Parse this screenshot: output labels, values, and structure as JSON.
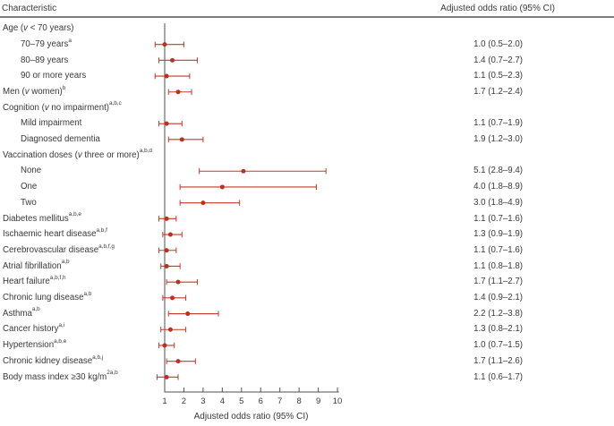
{
  "header": {
    "left": "Characteristic",
    "right": "Adjusted odds ratio (95% CI)"
  },
  "colors": {
    "accent_red": "#c23a28",
    "marker_red": "#b93221",
    "text": "#383838",
    "axis": "#4f4f4f",
    "rule": "#7d7d7d",
    "background": "#ffffff"
  },
  "chart_data": {
    "type": "scatter",
    "variant": "forest-plot",
    "title": "",
    "xlabel": "Adjusted odds ratio (95% CI)",
    "x_ticks": [
      1,
      2,
      3,
      4,
      5,
      6,
      7,
      8,
      9,
      10
    ],
    "x_range": [
      1,
      10
    ],
    "reference_line_x": 1,
    "grid": false,
    "rows": [
      {
        "label": "Age (v < 70 years)",
        "sup": "",
        "indent": false,
        "or": null,
        "lo": null,
        "hi": null,
        "text": ""
      },
      {
        "label": "70–79 years",
        "sup": "a",
        "indent": true,
        "or": 1.0,
        "lo": 0.5,
        "hi": 2.0,
        "text": "1.0 (0.5–2.0)"
      },
      {
        "label": "80–89 years",
        "sup": "",
        "indent": true,
        "or": 1.4,
        "lo": 0.7,
        "hi": 2.7,
        "text": "1.4 (0.7–2.7)"
      },
      {
        "label": "90 or more years",
        "sup": "",
        "indent": true,
        "or": 1.1,
        "lo": 0.5,
        "hi": 2.3,
        "text": "1.1 (0.5–2.3)"
      },
      {
        "label": "Men (v women)",
        "sup": "b",
        "indent": false,
        "or": 1.7,
        "lo": 1.2,
        "hi": 2.4,
        "text": "1.7 (1.2–2.4)"
      },
      {
        "label": "Cognition (v no impairment)",
        "sup": "a,b,c",
        "indent": false,
        "or": null,
        "lo": null,
        "hi": null,
        "text": ""
      },
      {
        "label": "Mild impairment",
        "sup": "",
        "indent": true,
        "or": 1.1,
        "lo": 0.7,
        "hi": 1.9,
        "text": "1.1 (0.7–1.9)"
      },
      {
        "label": "Diagnosed dementia",
        "sup": "",
        "indent": true,
        "or": 1.9,
        "lo": 1.2,
        "hi": 3.0,
        "text": "1.9 (1.2–3.0)"
      },
      {
        "label": "Vaccination doses (v three or more)",
        "sup": "a,b,d",
        "indent": false,
        "or": null,
        "lo": null,
        "hi": null,
        "text": ""
      },
      {
        "label": "None",
        "sup": "",
        "indent": true,
        "or": 5.1,
        "lo": 2.8,
        "hi": 9.4,
        "text": "5.1 (2.8–9.4)"
      },
      {
        "label": "One",
        "sup": "",
        "indent": true,
        "or": 4.0,
        "lo": 1.8,
        "hi": 8.9,
        "text": "4.0 (1.8–8.9)"
      },
      {
        "label": "Two",
        "sup": "",
        "indent": true,
        "or": 3.0,
        "lo": 1.8,
        "hi": 4.9,
        "text": "3.0 (1.8–4.9)"
      },
      {
        "label": "Diabetes mellitus",
        "sup": "a,b,e",
        "indent": false,
        "or": 1.1,
        "lo": 0.7,
        "hi": 1.6,
        "text": "1.1 (0.7–1.6)"
      },
      {
        "label": "Ischaemic heart disease",
        "sup": "a,b,f",
        "indent": false,
        "or": 1.3,
        "lo": 0.9,
        "hi": 1.9,
        "text": "1.3 (0.9–1.9)"
      },
      {
        "label": "Cerebrovascular disease",
        "sup": "a,b,f,g",
        "indent": false,
        "or": 1.1,
        "lo": 0.7,
        "hi": 1.6,
        "text": "1.1 (0.7–1.6)"
      },
      {
        "label": "Atrial fibrillation",
        "sup": "a,b",
        "indent": false,
        "or": 1.1,
        "lo": 0.8,
        "hi": 1.8,
        "text": "1.1 (0.8–1.8)"
      },
      {
        "label": "Heart failure",
        "sup": "a,b,f,h",
        "indent": false,
        "or": 1.7,
        "lo": 1.1,
        "hi": 2.7,
        "text": "1.7 (1.1–2.7)"
      },
      {
        "label": "Chronic lung disease",
        "sup": "a,b",
        "indent": false,
        "or": 1.4,
        "lo": 0.9,
        "hi": 2.1,
        "text": "1.4 (0.9–2.1)"
      },
      {
        "label": "Asthma",
        "sup": "a,b",
        "indent": false,
        "or": 2.2,
        "lo": 1.2,
        "hi": 3.8,
        "text": "2.2 (1.2–3.8)"
      },
      {
        "label": "Cancer history",
        "sup": "a,i",
        "indent": false,
        "or": 1.3,
        "lo": 0.8,
        "hi": 2.1,
        "text": "1.3 (0.8–2.1)"
      },
      {
        "label": "Hypertension",
        "sup": "a,b,e",
        "indent": false,
        "or": 1.0,
        "lo": 0.7,
        "hi": 1.5,
        "text": "1.0 (0.7–1.5)"
      },
      {
        "label": "Chronic kidney disease",
        "sup": "a,b,j",
        "indent": false,
        "or": 1.7,
        "lo": 1.1,
        "hi": 2.6,
        "text": "1.7 (1.1–2.6)"
      },
      {
        "label": "Body mass index ≥30 kg/m",
        "sup": "2a,b",
        "indent": false,
        "or": 1.1,
        "lo": 0.6,
        "hi": 1.7,
        "text": "1.1 (0.6–1.7)"
      }
    ]
  }
}
